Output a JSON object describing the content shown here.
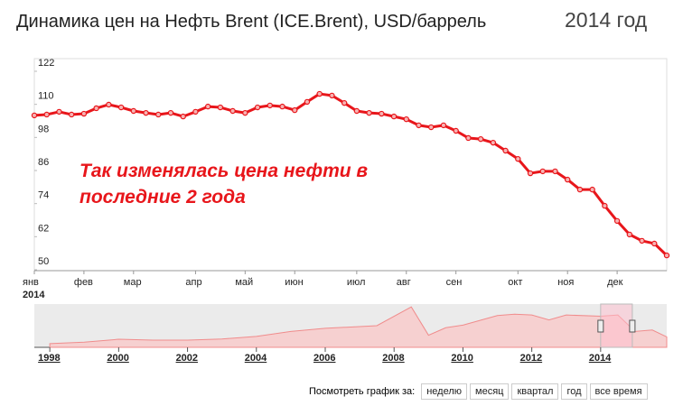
{
  "chart_data": [
    {
      "type": "line",
      "title": "Динамика цен на Нефть Brent (ICE.Brent), USD/баррель",
      "subtitle": "2014 год",
      "annotation": [
        "Так изменялась цена нефти в",
        "последние 2 года"
      ],
      "year_label": "2014",
      "categories": [
        "янв",
        null,
        null,
        null,
        "фев",
        null,
        null,
        null,
        "мар",
        null,
        null,
        null,
        null,
        "апр",
        null,
        null,
        null,
        "май",
        null,
        null,
        null,
        "июн",
        null,
        null,
        null,
        null,
        "июл",
        null,
        null,
        null,
        "авг",
        null,
        null,
        null,
        "сен",
        null,
        null,
        null,
        null,
        "окт",
        null,
        null,
        null,
        "ноя",
        null,
        null,
        null,
        "дек",
        null,
        null,
        null,
        null
      ],
      "series": [
        {
          "name": "Brent",
          "color": "#e8161b",
          "values": [
            106,
            106.3,
            107.3,
            106.3,
            106.6,
            108.6,
            109.9,
            108.9,
            107.6,
            106.9,
            106.3,
            106.9,
            105.6,
            107.3,
            109.2,
            108.9,
            107.6,
            106.9,
            108.9,
            109.6,
            109.2,
            107.9,
            110.9,
            113.8,
            113.2,
            110.5,
            107.6,
            106.9,
            106.6,
            105.6,
            104.6,
            102.4,
            101.7,
            102.4,
            100.4,
            97.8,
            97.4,
            96.1,
            93.2,
            90.2,
            85.0,
            85.7,
            85.7,
            82.7,
            79.1,
            79.1,
            73.2,
            67.7,
            62.8,
            60.5,
            59.5,
            55.2
          ]
        }
      ],
      "ylim": [
        50,
        122
      ],
      "yticks": [
        50,
        62,
        74,
        86,
        98,
        110,
        122
      ]
    },
    {
      "type": "area",
      "x": [
        1998,
        1999,
        2000,
        2001,
        2002,
        2003,
        2004,
        2005,
        2006,
        2007,
        2007.5,
        2008.5,
        2009.0,
        2009.5,
        2010,
        2011,
        2011.5,
        2012,
        2012.5,
        2013,
        2014,
        2014.5,
        2015,
        2015.5,
        2015.92
      ],
      "series": [
        {
          "name": "Brent",
          "color": "#f08c8c",
          "values": [
            13,
            18,
            28,
            25,
            25,
            29,
            38,
            55,
            66,
            72,
            75,
            140,
            42,
            68,
            77,
            110,
            115,
            112,
            95,
            112,
            108,
            112,
            55,
            60,
            36
          ]
        }
      ],
      "xlim": [
        1997.55,
        2015.92
      ],
      "ylim": [
        0,
        150
      ],
      "xticks": [
        1998,
        2000,
        2002,
        2004,
        2006,
        2008,
        2010,
        2012,
        2014
      ],
      "selection": [
        2014,
        2014.92
      ]
    }
  ],
  "controls": {
    "label": "Посмотреть график за:",
    "buttons": [
      "неделю",
      "месяц",
      "квартал",
      "год",
      "все время"
    ]
  }
}
